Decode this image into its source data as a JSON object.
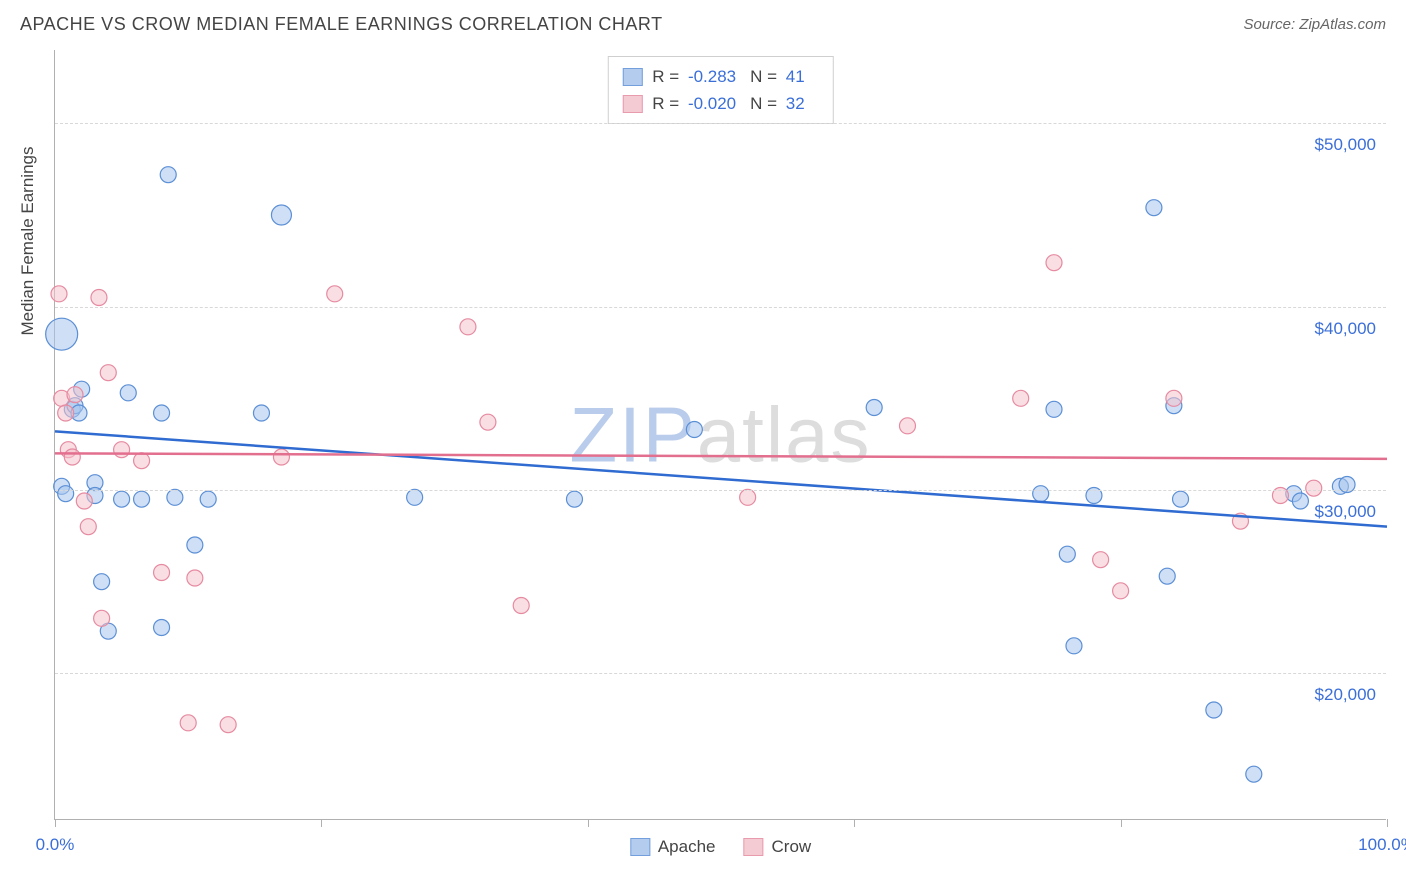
{
  "header": {
    "title": "APACHE VS CROW MEDIAN FEMALE EARNINGS CORRELATION CHART",
    "source": "Source: ZipAtlas.com"
  },
  "chart": {
    "type": "scatter",
    "watermark_a": "ZIP",
    "watermark_b": "atlas",
    "y_axis_title": "Median Female Earnings",
    "xlim": [
      0,
      100
    ],
    "ylim": [
      12000,
      54000
    ],
    "xtick_positions": [
      0,
      20,
      40,
      60,
      80,
      100
    ],
    "xtick_labels": {
      "0": "0.0%",
      "100": "100.0%"
    },
    "ytick_positions": [
      20000,
      30000,
      40000,
      50000
    ],
    "ytick_labels": {
      "20000": "$20,000",
      "30000": "$30,000",
      "40000": "$40,000",
      "50000": "$50,000"
    },
    "grid_color": "#d8d8d8",
    "axis_color": "#b0b0b0",
    "tick_label_color": "#3b6fd8",
    "background_color": "#ffffff",
    "series": [
      {
        "name": "Apache",
        "fill": "#a7c4ec",
        "stroke": "#5b8fd6",
        "fill_opacity": 0.55,
        "trend_color": "#2f6bd0",
        "r_value": "-0.283",
        "n_value": "41",
        "trend": {
          "y_at_x0": 33200,
          "y_at_x100": 28000
        },
        "points": [
          {
            "x": 0.5,
            "y": 38500,
            "r": 16
          },
          {
            "x": 0.5,
            "y": 30200,
            "r": 8
          },
          {
            "x": 0.8,
            "y": 29800,
            "r": 8
          },
          {
            "x": 1.3,
            "y": 34400,
            "r": 8
          },
          {
            "x": 1.5,
            "y": 34600,
            "r": 8
          },
          {
            "x": 1.8,
            "y": 34200,
            "r": 8
          },
          {
            "x": 2.0,
            "y": 35500,
            "r": 8
          },
          {
            "x": 3.0,
            "y": 30400,
            "r": 8
          },
          {
            "x": 3.0,
            "y": 29700,
            "r": 8
          },
          {
            "x": 3.5,
            "y": 25000,
            "r": 8
          },
          {
            "x": 4.0,
            "y": 22300,
            "r": 8
          },
          {
            "x": 5.0,
            "y": 29500,
            "r": 8
          },
          {
            "x": 5.5,
            "y": 35300,
            "r": 8
          },
          {
            "x": 6.5,
            "y": 29500,
            "r": 8
          },
          {
            "x": 8.0,
            "y": 34200,
            "r": 8
          },
          {
            "x": 8.0,
            "y": 22500,
            "r": 8
          },
          {
            "x": 8.5,
            "y": 47200,
            "r": 8
          },
          {
            "x": 9.0,
            "y": 29600,
            "r": 8
          },
          {
            "x": 10.5,
            "y": 27000,
            "r": 8
          },
          {
            "x": 11.5,
            "y": 29500,
            "r": 8
          },
          {
            "x": 15.5,
            "y": 34200,
            "r": 8
          },
          {
            "x": 17.0,
            "y": 45000,
            "r": 10
          },
          {
            "x": 27.0,
            "y": 29600,
            "r": 8
          },
          {
            "x": 39.0,
            "y": 29500,
            "r": 8
          },
          {
            "x": 48.0,
            "y": 33300,
            "r": 8
          },
          {
            "x": 61.5,
            "y": 34500,
            "r": 8
          },
          {
            "x": 74.0,
            "y": 29800,
            "r": 8
          },
          {
            "x": 75.0,
            "y": 34400,
            "r": 8
          },
          {
            "x": 76.0,
            "y": 26500,
            "r": 8
          },
          {
            "x": 76.5,
            "y": 21500,
            "r": 8
          },
          {
            "x": 78.0,
            "y": 29700,
            "r": 8
          },
          {
            "x": 82.5,
            "y": 45400,
            "r": 8
          },
          {
            "x": 83.5,
            "y": 25300,
            "r": 8
          },
          {
            "x": 84.0,
            "y": 34600,
            "r": 8
          },
          {
            "x": 84.5,
            "y": 29500,
            "r": 8
          },
          {
            "x": 87.0,
            "y": 18000,
            "r": 8
          },
          {
            "x": 90.0,
            "y": 14500,
            "r": 8
          },
          {
            "x": 93.0,
            "y": 29800,
            "r": 8
          },
          {
            "x": 93.5,
            "y": 29400,
            "r": 8
          },
          {
            "x": 96.5,
            "y": 30200,
            "r": 8
          },
          {
            "x": 97.0,
            "y": 30300,
            "r": 8
          }
        ]
      },
      {
        "name": "Crow",
        "fill": "#f4c2cc",
        "stroke": "#e68aa0",
        "fill_opacity": 0.55,
        "trend_color": "#e36f8f",
        "r_value": "-0.020",
        "n_value": "32",
        "trend": {
          "y_at_x0": 32000,
          "y_at_x100": 31700
        },
        "points": [
          {
            "x": 0.3,
            "y": 40700,
            "r": 8
          },
          {
            "x": 0.5,
            "y": 35000,
            "r": 8
          },
          {
            "x": 0.8,
            "y": 34200,
            "r": 8
          },
          {
            "x": 1.0,
            "y": 32200,
            "r": 8
          },
          {
            "x": 1.3,
            "y": 31800,
            "r": 8
          },
          {
            "x": 1.5,
            "y": 35200,
            "r": 8
          },
          {
            "x": 2.2,
            "y": 29400,
            "r": 8
          },
          {
            "x": 2.5,
            "y": 28000,
            "r": 8
          },
          {
            "x": 3.3,
            "y": 40500,
            "r": 8
          },
          {
            "x": 3.5,
            "y": 23000,
            "r": 8
          },
          {
            "x": 4.0,
            "y": 36400,
            "r": 8
          },
          {
            "x": 5.0,
            "y": 32200,
            "r": 8
          },
          {
            "x": 6.5,
            "y": 31600,
            "r": 8
          },
          {
            "x": 8.0,
            "y": 25500,
            "r": 8
          },
          {
            "x": 10.5,
            "y": 25200,
            "r": 8
          },
          {
            "x": 10.0,
            "y": 17300,
            "r": 8
          },
          {
            "x": 13.0,
            "y": 17200,
            "r": 8
          },
          {
            "x": 17.0,
            "y": 31800,
            "r": 8
          },
          {
            "x": 21.0,
            "y": 40700,
            "r": 8
          },
          {
            "x": 31.0,
            "y": 38900,
            "r": 8
          },
          {
            "x": 32.5,
            "y": 33700,
            "r": 8
          },
          {
            "x": 35.0,
            "y": 23700,
            "r": 8
          },
          {
            "x": 52.0,
            "y": 29600,
            "r": 8
          },
          {
            "x": 64.0,
            "y": 33500,
            "r": 8
          },
          {
            "x": 72.5,
            "y": 35000,
            "r": 8
          },
          {
            "x": 75.0,
            "y": 42400,
            "r": 8
          },
          {
            "x": 78.5,
            "y": 26200,
            "r": 8
          },
          {
            "x": 80.0,
            "y": 24500,
            "r": 8
          },
          {
            "x": 84.0,
            "y": 35000,
            "r": 8
          },
          {
            "x": 89.0,
            "y": 28300,
            "r": 8
          },
          {
            "x": 92.0,
            "y": 29700,
            "r": 8
          },
          {
            "x": 94.5,
            "y": 30100,
            "r": 8
          }
        ]
      }
    ]
  }
}
